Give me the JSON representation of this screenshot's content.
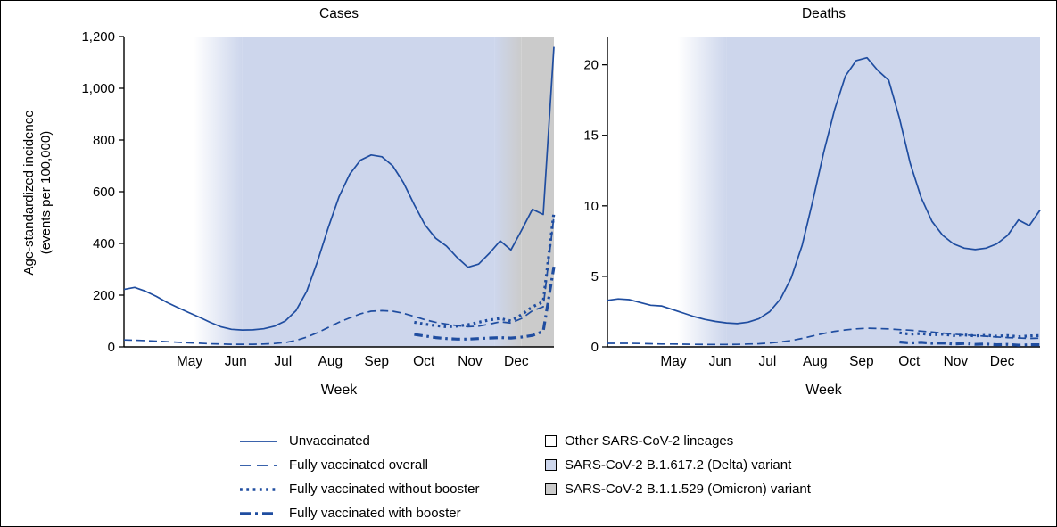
{
  "figure": {
    "y_axis_label": {
      "line1": "Age-standardized incidence",
      "line2": "(events per 100,000)"
    }
  },
  "colors": {
    "line_blue": "#1f4da0",
    "delta_fill": "#cdd6ec",
    "omicron_fill": "#cbcbcb",
    "other_fill": "#ffffff",
    "axis": "#000000"
  },
  "legend": {
    "lines": [
      {
        "label": "Unvaccinated",
        "style": "solid"
      },
      {
        "label": "Fully vaccinated overall",
        "style": "dashed"
      },
      {
        "label": "Fully vaccinated without booster",
        "style": "dotted"
      },
      {
        "label": "Fully vaccinated with booster",
        "style": "dashdot"
      }
    ],
    "swatches": [
      {
        "label": "Other SARS-CoV-2 lineages",
        "color": "#ffffff"
      },
      {
        "label": "SARS-CoV-2 B.1.617.2 (Delta) variant",
        "color": "#cdd6ec"
      },
      {
        "label": "SARS-CoV-2 B.1.1.529 (Omicron) variant",
        "color": "#cbcbcb"
      }
    ]
  },
  "chart_data": [
    {
      "type": "line",
      "title": "Cases",
      "xlabel": "Week",
      "ylabel": "Age-standardized incidence (events per 100,000)",
      "x_unit": "week index (weekly data, Apr–Dec 2021)",
      "xlim": [
        0,
        40
      ],
      "ylim": [
        0,
        1200
      ],
      "yticks": [
        0,
        200,
        400,
        600,
        800,
        1000,
        1200
      ],
      "ytick_labels": [
        "0",
        "200",
        "400",
        "600",
        "800",
        "1,000",
        "1,200"
      ],
      "x_axis": {
        "months": [
          {
            "label": "May",
            "x": 6.1
          },
          {
            "label": "Jun",
            "x": 10.4
          },
          {
            "label": "Jul",
            "x": 14.8
          },
          {
            "label": "Aug",
            "x": 19.2
          },
          {
            "label": "Sep",
            "x": 23.5
          },
          {
            "label": "Oct",
            "x": 27.9
          },
          {
            "label": "Nov",
            "x": 32.2
          },
          {
            "label": "Dec",
            "x": 36.5
          }
        ]
      },
      "bands": [
        {
          "name": "Other SARS-CoV-2 lineages",
          "from": 0,
          "to": 6.5,
          "color": "#ffffff"
        },
        {
          "name": "transition to Delta",
          "from": 6.5,
          "to": 11,
          "gradient": [
            "#ffffff",
            "#cdd6ec"
          ]
        },
        {
          "name": "SARS-CoV-2 B.1.617.2 (Delta) variant",
          "from": 11,
          "to": 34.5,
          "color": "#cdd6ec"
        },
        {
          "name": "transition to Omicron",
          "from": 34.5,
          "to": 37,
          "gradient": [
            "#cdd6ec",
            "#cbcbcb"
          ]
        },
        {
          "name": "SARS-CoV-2 B.1.1.529 (Omicron) variant",
          "from": 37,
          "to": 40,
          "color": "#cbcbcb"
        }
      ],
      "series": [
        {
          "name": "Unvaccinated",
          "style": "solid",
          "x_start": 0,
          "values": [
            222,
            230,
            215,
            195,
            172,
            152,
            133,
            115,
            95,
            78,
            68,
            65,
            66,
            70,
            80,
            100,
            140,
            215,
            330,
            460,
            580,
            668,
            722,
            742,
            735,
            700,
            635,
            550,
            472,
            420,
            390,
            345,
            308,
            320,
            362,
            410,
            375,
            452,
            532,
            512,
            1160
          ]
        },
        {
          "name": "Fully vaccinated overall",
          "style": "dashed",
          "x_start": 0,
          "values": [
            27,
            26,
            24,
            22,
            20,
            18,
            16,
            14,
            12,
            11,
            10,
            10,
            10,
            11,
            13,
            17,
            25,
            38,
            55,
            75,
            95,
            112,
            128,
            138,
            140,
            138,
            130,
            118,
            105,
            95,
            88,
            82,
            78,
            80,
            88,
            97,
            92,
            110,
            140,
            155,
            505
          ]
        },
        {
          "name": "Fully vaccinated without booster",
          "style": "dotted",
          "x_start": 27,
          "values": [
            95,
            88,
            82,
            78,
            80,
            86,
            95,
            104,
            110,
            100,
            125,
            155,
            175,
            520
          ]
        },
        {
          "name": "Fully vaccinated with booster",
          "style": "dashdot",
          "x_start": 27,
          "values": [
            48,
            42,
            36,
            32,
            30,
            30,
            32,
            34,
            36,
            34,
            38,
            44,
            60,
            310
          ]
        }
      ]
    },
    {
      "type": "line",
      "title": "Deaths",
      "xlabel": "Week",
      "ylabel": "Age-standardized incidence (events per 100,000)",
      "x_unit": "week index (weekly data, Apr–Dec 2021)",
      "xlim": [
        0,
        40
      ],
      "ylim": [
        0,
        22
      ],
      "yticks": [
        0,
        5,
        10,
        15,
        20
      ],
      "ytick_labels": [
        "0",
        "5",
        "10",
        "15",
        "20"
      ],
      "x_axis": {
        "months": [
          {
            "label": "May",
            "x": 6.1
          },
          {
            "label": "Jun",
            "x": 10.4
          },
          {
            "label": "Jul",
            "x": 14.8
          },
          {
            "label": "Aug",
            "x": 19.2
          },
          {
            "label": "Sep",
            "x": 23.5
          },
          {
            "label": "Oct",
            "x": 27.9
          },
          {
            "label": "Nov",
            "x": 32.2
          },
          {
            "label": "Dec",
            "x": 36.5
          }
        ]
      },
      "bands": [
        {
          "name": "Other SARS-CoV-2 lineages",
          "from": 0,
          "to": 6.5,
          "color": "#ffffff"
        },
        {
          "name": "transition to Delta",
          "from": 6.5,
          "to": 11,
          "gradient": [
            "#ffffff",
            "#cdd6ec"
          ]
        },
        {
          "name": "SARS-CoV-2 B.1.617.2 (Delta) variant",
          "from": 11,
          "to": 40,
          "color": "#cdd6ec"
        }
      ],
      "series": [
        {
          "name": "Unvaccinated",
          "style": "solid",
          "x_start": 0,
          "values": [
            3.3,
            3.4,
            3.35,
            3.15,
            2.95,
            2.9,
            2.65,
            2.4,
            2.15,
            1.95,
            1.8,
            1.7,
            1.65,
            1.75,
            2.0,
            2.5,
            3.4,
            4.9,
            7.2,
            10.4,
            13.8,
            16.8,
            19.2,
            20.3,
            20.5,
            19.6,
            18.9,
            16.2,
            13.0,
            10.6,
            8.9,
            7.9,
            7.3,
            7.0,
            6.9,
            7.0,
            7.3,
            7.9,
            9.0,
            8.6,
            9.7
          ]
        },
        {
          "name": "Fully vaccinated overall",
          "style": "dashed",
          "x_start": 0,
          "values": [
            0.25,
            0.25,
            0.25,
            0.24,
            0.22,
            0.2,
            0.2,
            0.19,
            0.18,
            0.17,
            0.17,
            0.17,
            0.18,
            0.2,
            0.22,
            0.28,
            0.35,
            0.45,
            0.6,
            0.78,
            0.95,
            1.1,
            1.2,
            1.28,
            1.32,
            1.3,
            1.27,
            1.22,
            1.18,
            1.12,
            1.05,
            0.98,
            0.9,
            0.85,
            0.8,
            0.75,
            0.7,
            0.66,
            0.63,
            0.6,
            0.62
          ]
        },
        {
          "name": "Fully vaccinated without booster",
          "style": "dotted",
          "x_start": 27,
          "values": [
            1.0,
            0.9,
            0.95,
            0.85,
            0.9,
            0.8,
            0.85,
            0.78,
            0.82,
            0.75,
            0.8,
            0.72,
            0.78,
            0.8
          ]
        },
        {
          "name": "Fully vaccinated with booster",
          "style": "dashdot",
          "x_start": 27,
          "values": [
            0.35,
            0.28,
            0.32,
            0.25,
            0.28,
            0.2,
            0.24,
            0.18,
            0.2,
            0.15,
            0.18,
            0.12,
            0.15,
            0.15
          ]
        }
      ]
    }
  ]
}
